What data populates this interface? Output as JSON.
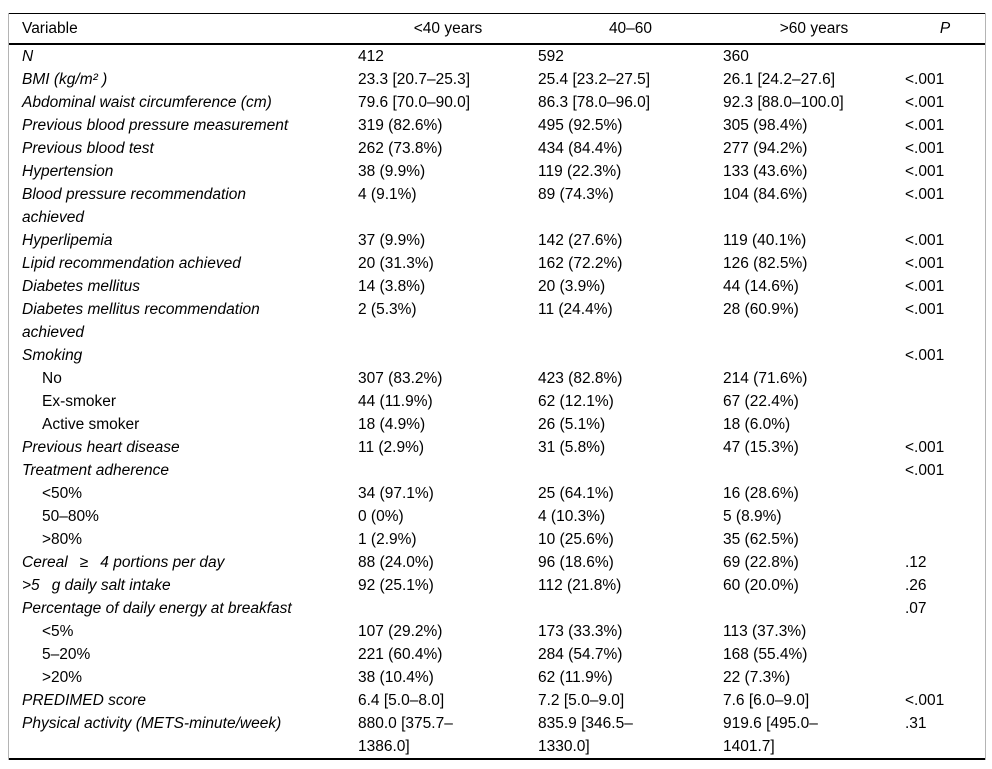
{
  "header": {
    "columns": [
      "Variable",
      "<40 years",
      "40–60",
      ">60 years",
      "P"
    ]
  },
  "rows": [
    {
      "label": "N",
      "italic": true,
      "indent": false,
      "values": [
        "412",
        "592",
        "360"
      ],
      "p": ""
    },
    {
      "label": "BMI (kg/m² )",
      "italic": true,
      "indent": false,
      "values": [
        "23.3 [20.7–25.3]",
        "25.4 [23.2–27.5]",
        "26.1 [24.2–27.6]"
      ],
      "p": "<.001"
    },
    {
      "label": "Abdominal waist circumference (cm)",
      "italic": true,
      "indent": false,
      "values": [
        "79.6 [70.0–90.0]",
        "86.3 [78.0–96.0]",
        "92.3 [88.0–100.0]"
      ],
      "p": "<.001"
    },
    {
      "label": "Previous blood pressure measurement",
      "italic": true,
      "indent": false,
      "values": [
        "319 (82.6%)",
        "495 (92.5%)",
        "305 (98.4%)"
      ],
      "p": "<.001"
    },
    {
      "label": "Previous blood test",
      "italic": true,
      "indent": false,
      "values": [
        "262 (73.8%)",
        "434 (84.4%)",
        "277 (94.2%)"
      ],
      "p": "<.001"
    },
    {
      "label": "Hypertension",
      "italic": true,
      "indent": false,
      "values": [
        "38 (9.9%)",
        "119 (22.3%)",
        "133 (43.6%)"
      ],
      "p": "<.001"
    },
    {
      "label": "Blood pressure recommendation\nachieved",
      "italic": true,
      "indent": false,
      "values": [
        "4 (9.1%)",
        "89 (74.3%)",
        "104 (84.6%)"
      ],
      "p": "<.001"
    },
    {
      "label": "Hyperlipemia",
      "italic": true,
      "indent": false,
      "values": [
        "37 (9.9%)",
        "142 (27.6%)",
        "119 (40.1%)"
      ],
      "p": "<.001"
    },
    {
      "label": "Lipid recommendation achieved",
      "italic": true,
      "indent": false,
      "values": [
        "20 (31.3%)",
        "162 (72.2%)",
        "126 (82.5%)"
      ],
      "p": "<.001"
    },
    {
      "label": "Diabetes mellitus",
      "italic": true,
      "indent": false,
      "values": [
        "14 (3.8%)",
        "20 (3.9%)",
        "44 (14.6%)"
      ],
      "p": "<.001"
    },
    {
      "label": "Diabetes mellitus recommendation\nachieved",
      "italic": true,
      "indent": false,
      "values": [
        "2 (5.3%)",
        "11 (24.4%)",
        "28 (60.9%)"
      ],
      "p": "<.001"
    },
    {
      "label": "Smoking",
      "italic": true,
      "indent": false,
      "values": [
        "",
        "",
        ""
      ],
      "p": "<.001"
    },
    {
      "label": "No",
      "italic": false,
      "indent": true,
      "values": [
        "307 (83.2%)",
        "423 (82.8%)",
        "214 (71.6%)"
      ],
      "p": ""
    },
    {
      "label": "Ex-smoker",
      "italic": false,
      "indent": true,
      "values": [
        "44 (11.9%)",
        "62 (12.1%)",
        "67 (22.4%)"
      ],
      "p": ""
    },
    {
      "label": "Active smoker",
      "italic": false,
      "indent": true,
      "values": [
        "18 (4.9%)",
        "26 (5.1%)",
        "18 (6.0%)"
      ],
      "p": ""
    },
    {
      "label": "Previous heart disease",
      "italic": true,
      "indent": false,
      "values": [
        "11 (2.9%)",
        "31 (5.8%)",
        "47 (15.3%)"
      ],
      "p": "<.001"
    },
    {
      "label": "Treatment adherence",
      "italic": true,
      "indent": false,
      "values": [
        "",
        "",
        ""
      ],
      "p": "<.001"
    },
    {
      "label": "<50%",
      "italic": false,
      "indent": true,
      "values": [
        "34 (97.1%)",
        "25 (64.1%)",
        "16 (28.6%)"
      ],
      "p": ""
    },
    {
      "label": "50–80%",
      "italic": false,
      "indent": true,
      "values": [
        "0 (0%)",
        "4 (10.3%)",
        "5 (8.9%)"
      ],
      "p": ""
    },
    {
      "label": ">80%",
      "italic": false,
      "indent": true,
      "values": [
        "1 (2.9%)",
        "10 (25.6%)",
        "35 (62.5%)"
      ],
      "p": ""
    },
    {
      "label": "Cereal  ≥  4 portions per day",
      "italic": true,
      "indent": false,
      "values": [
        "88 (24.0%)",
        "96 (18.6%)",
        "69 (22.8%)"
      ],
      "p": ".12"
    },
    {
      "label": ">5  g daily salt intake",
      "italic": true,
      "indent": false,
      "values": [
        "92 (25.1%)",
        "112 (21.8%)",
        "60 (20.0%)"
      ],
      "p": ".26"
    },
    {
      "label": "Percentage of daily energy at breakfast",
      "italic": true,
      "indent": false,
      "values": [
        "",
        "",
        ""
      ],
      "p": ".07"
    },
    {
      "label": "<5%",
      "italic": false,
      "indent": true,
      "values": [
        "107 (29.2%)",
        "173 (33.3%)",
        "113 (37.3%)"
      ],
      "p": ""
    },
    {
      "label": "5–20%",
      "italic": false,
      "indent": true,
      "values": [
        "221 (60.4%)",
        "284 (54.7%)",
        "168 (55.4%)"
      ],
      "p": ""
    },
    {
      "label": ">20%",
      "italic": false,
      "indent": true,
      "values": [
        "38 (10.4%)",
        "62 (11.9%)",
        "22 (7.3%)"
      ],
      "p": ""
    },
    {
      "label": "PREDIMED score",
      "italic": true,
      "indent": false,
      "values": [
        "6.4 [5.0–8.0]",
        "7.2 [5.0–9.0]",
        "7.6 [6.0–9.0]"
      ],
      "p": "<.001"
    },
    {
      "label": "Physical activity (METS-minute/week)",
      "italic": true,
      "indent": false,
      "values": [
        "880.0 [375.7–\n1386.0]",
        "835.9 [346.5–\n1330.0]",
        "919.6 [495.0–\n1401.7]"
      ],
      "p": ".31"
    }
  ]
}
